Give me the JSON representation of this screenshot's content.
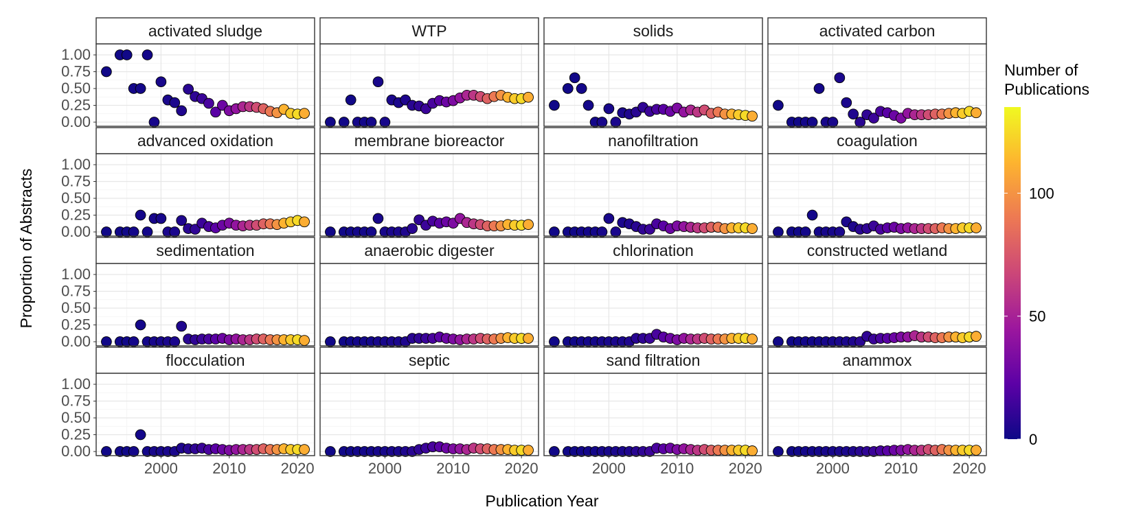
{
  "chart_data": {
    "type": "scatter",
    "facet_layout": {
      "rows": 4,
      "cols": 4
    },
    "xlabel": "Publication Year",
    "ylabel": "Proportion of Abstracts",
    "xlim": [
      1990.5,
      2022.5
    ],
    "ylim": [
      0,
      1
    ],
    "x_ticks": [
      2000,
      2010,
      2020
    ],
    "y_ticks": [
      "0.00",
      "0.25",
      "0.50",
      "0.75",
      "1.00"
    ],
    "grid": true,
    "legend": {
      "title": [
        "Number of",
        "Publications"
      ],
      "placement": "right",
      "range": [
        0,
        135
      ],
      "ticks": [
        0,
        50,
        100
      ],
      "palette": [
        "#0d0887",
        "#5c01a6",
        "#9c179e",
        "#cc4778",
        "#ed7953",
        "#fdb42f",
        "#f0f921"
      ]
    },
    "years": [
      1992,
      1994,
      1995,
      1996,
      1997,
      1998,
      1999,
      2000,
      2001,
      2002,
      2003,
      2004,
      2005,
      2006,
      2007,
      2008,
      2009,
      2010,
      2011,
      2012,
      2013,
      2014,
      2015,
      2016,
      2017,
      2018,
      2019,
      2020,
      2021
    ],
    "publications": [
      1,
      1,
      1,
      2,
      2,
      2,
      3,
      3,
      4,
      4,
      5,
      8,
      10,
      13,
      17,
      22,
      28,
      34,
      42,
      52,
      60,
      70,
      80,
      90,
      100,
      112,
      120,
      125,
      110
    ],
    "facets": [
      {
        "label": "activated sludge",
        "values": [
          0.75,
          1.0,
          1.0,
          0.5,
          0.5,
          1.0,
          0.0,
          0.6,
          0.33,
          0.29,
          0.17,
          0.49,
          0.38,
          0.35,
          0.28,
          0.15,
          0.25,
          0.17,
          0.2,
          0.23,
          0.23,
          0.22,
          0.2,
          0.16,
          0.14,
          0.19,
          0.13,
          0.12,
          0.13
        ]
      },
      {
        "label": "WTP",
        "values": [
          0.0,
          0.0,
          0.33,
          0.0,
          0.0,
          0.0,
          0.6,
          0.0,
          0.33,
          0.29,
          0.33,
          0.25,
          0.24,
          0.2,
          0.28,
          0.32,
          0.3,
          0.32,
          0.36,
          0.4,
          0.4,
          0.38,
          0.35,
          0.38,
          0.4,
          0.37,
          0.35,
          0.35,
          0.37
        ]
      },
      {
        "label": "solids",
        "values": [
          0.25,
          0.5,
          0.66,
          0.5,
          0.25,
          0.0,
          0.0,
          0.2,
          0.0,
          0.14,
          0.12,
          0.15,
          0.22,
          0.16,
          0.19,
          0.19,
          0.16,
          0.21,
          0.15,
          0.18,
          0.15,
          0.18,
          0.13,
          0.15,
          0.12,
          0.12,
          0.11,
          0.1,
          0.09
        ]
      },
      {
        "label": "activated carbon",
        "values": [
          0.25,
          0.0,
          0.0,
          0.0,
          0.0,
          0.5,
          0.0,
          0.0,
          0.66,
          0.29,
          0.12,
          0.0,
          0.11,
          0.06,
          0.16,
          0.14,
          0.1,
          0.06,
          0.13,
          0.11,
          0.11,
          0.11,
          0.12,
          0.12,
          0.13,
          0.14,
          0.13,
          0.16,
          0.14
        ]
      },
      {
        "label": "advanced oxidation",
        "values": [
          0.0,
          0.0,
          0.0,
          0.0,
          0.25,
          0.0,
          0.2,
          0.2,
          0.0,
          0.0,
          0.17,
          0.05,
          0.04,
          0.13,
          0.08,
          0.06,
          0.1,
          0.13,
          0.1,
          0.09,
          0.1,
          0.1,
          0.12,
          0.12,
          0.11,
          0.13,
          0.15,
          0.17,
          0.15
        ]
      },
      {
        "label": "membrane bioreactor",
        "values": [
          0.0,
          0.0,
          0.0,
          0.0,
          0.0,
          0.0,
          0.2,
          0.0,
          0.0,
          0.0,
          0.0,
          0.05,
          0.18,
          0.1,
          0.16,
          0.13,
          0.15,
          0.13,
          0.2,
          0.14,
          0.12,
          0.11,
          0.09,
          0.09,
          0.09,
          0.11,
          0.1,
          0.1,
          0.11
        ]
      },
      {
        "label": "nanofiltration",
        "values": [
          0.0,
          0.0,
          0.0,
          0.0,
          0.0,
          0.0,
          0.0,
          0.2,
          0.0,
          0.14,
          0.12,
          0.08,
          0.04,
          0.04,
          0.12,
          0.09,
          0.05,
          0.09,
          0.08,
          0.07,
          0.06,
          0.06,
          0.07,
          0.07,
          0.05,
          0.06,
          0.06,
          0.06,
          0.05
        ]
      },
      {
        "label": "coagulation",
        "values": [
          0.0,
          0.0,
          0.0,
          0.0,
          0.25,
          0.0,
          0.0,
          0.0,
          0.0,
          0.15,
          0.08,
          0.04,
          0.05,
          0.09,
          0.04,
          0.06,
          0.07,
          0.05,
          0.06,
          0.05,
          0.05,
          0.05,
          0.05,
          0.06,
          0.05,
          0.05,
          0.06,
          0.06,
          0.06
        ]
      },
      {
        "label": "sedimentation",
        "values": [
          0.0,
          0.0,
          0.0,
          0.0,
          0.25,
          0.0,
          0.0,
          0.0,
          0.0,
          0.0,
          0.23,
          0.04,
          0.03,
          0.04,
          0.04,
          0.04,
          0.05,
          0.03,
          0.04,
          0.03,
          0.03,
          0.04,
          0.04,
          0.03,
          0.03,
          0.03,
          0.03,
          0.03,
          0.02
        ]
      },
      {
        "label": "anaerobic digester",
        "values": [
          0.0,
          0.0,
          0.0,
          0.0,
          0.0,
          0.0,
          0.0,
          0.0,
          0.0,
          0.0,
          0.0,
          0.05,
          0.05,
          0.05,
          0.05,
          0.07,
          0.05,
          0.04,
          0.03,
          0.04,
          0.04,
          0.05,
          0.04,
          0.04,
          0.05,
          0.06,
          0.05,
          0.05,
          0.05
        ]
      },
      {
        "label": "chlorination",
        "values": [
          0.0,
          0.0,
          0.0,
          0.0,
          0.0,
          0.0,
          0.0,
          0.0,
          0.0,
          0.0,
          0.0,
          0.05,
          0.05,
          0.05,
          0.11,
          0.07,
          0.05,
          0.03,
          0.05,
          0.04,
          0.04,
          0.05,
          0.04,
          0.04,
          0.04,
          0.05,
          0.05,
          0.05,
          0.04
        ]
      },
      {
        "label": "constructed wetland",
        "values": [
          0.0,
          0.0,
          0.0,
          0.0,
          0.0,
          0.0,
          0.0,
          0.0,
          0.0,
          0.0,
          0.0,
          0.0,
          0.08,
          0.04,
          0.05,
          0.05,
          0.06,
          0.07,
          0.07,
          0.09,
          0.07,
          0.07,
          0.06,
          0.06,
          0.07,
          0.07,
          0.06,
          0.07,
          0.08
        ]
      },
      {
        "label": "flocculation",
        "values": [
          0.0,
          0.0,
          0.0,
          0.0,
          0.25,
          0.0,
          0.0,
          0.0,
          0.0,
          0.0,
          0.05,
          0.04,
          0.04,
          0.05,
          0.03,
          0.04,
          0.03,
          0.02,
          0.03,
          0.03,
          0.03,
          0.03,
          0.04,
          0.03,
          0.03,
          0.04,
          0.03,
          0.03,
          0.03
        ]
      },
      {
        "label": "septic",
        "values": [
          0.0,
          0.0,
          0.0,
          0.0,
          0.0,
          0.0,
          0.0,
          0.0,
          0.0,
          0.0,
          0.0,
          0.0,
          0.03,
          0.05,
          0.07,
          0.07,
          0.05,
          0.04,
          0.04,
          0.03,
          0.05,
          0.04,
          0.04,
          0.03,
          0.03,
          0.03,
          0.02,
          0.02,
          0.02
        ]
      },
      {
        "label": "sand filtration",
        "values": [
          0.0,
          0.0,
          0.0,
          0.0,
          0.0,
          0.0,
          0.0,
          0.0,
          0.0,
          0.0,
          0.0,
          0.0,
          0.0,
          0.0,
          0.05,
          0.04,
          0.05,
          0.03,
          0.04,
          0.03,
          0.02,
          0.03,
          0.02,
          0.02,
          0.02,
          0.02,
          0.02,
          0.02,
          0.01
        ]
      },
      {
        "label": "anammox",
        "values": [
          0.0,
          0.0,
          0.0,
          0.0,
          0.0,
          0.0,
          0.0,
          0.0,
          0.0,
          0.0,
          0.0,
          0.0,
          0.0,
          0.0,
          0.01,
          0.01,
          0.02,
          0.02,
          0.03,
          0.02,
          0.02,
          0.03,
          0.02,
          0.03,
          0.02,
          0.02,
          0.02,
          0.02,
          0.02
        ]
      }
    ]
  }
}
